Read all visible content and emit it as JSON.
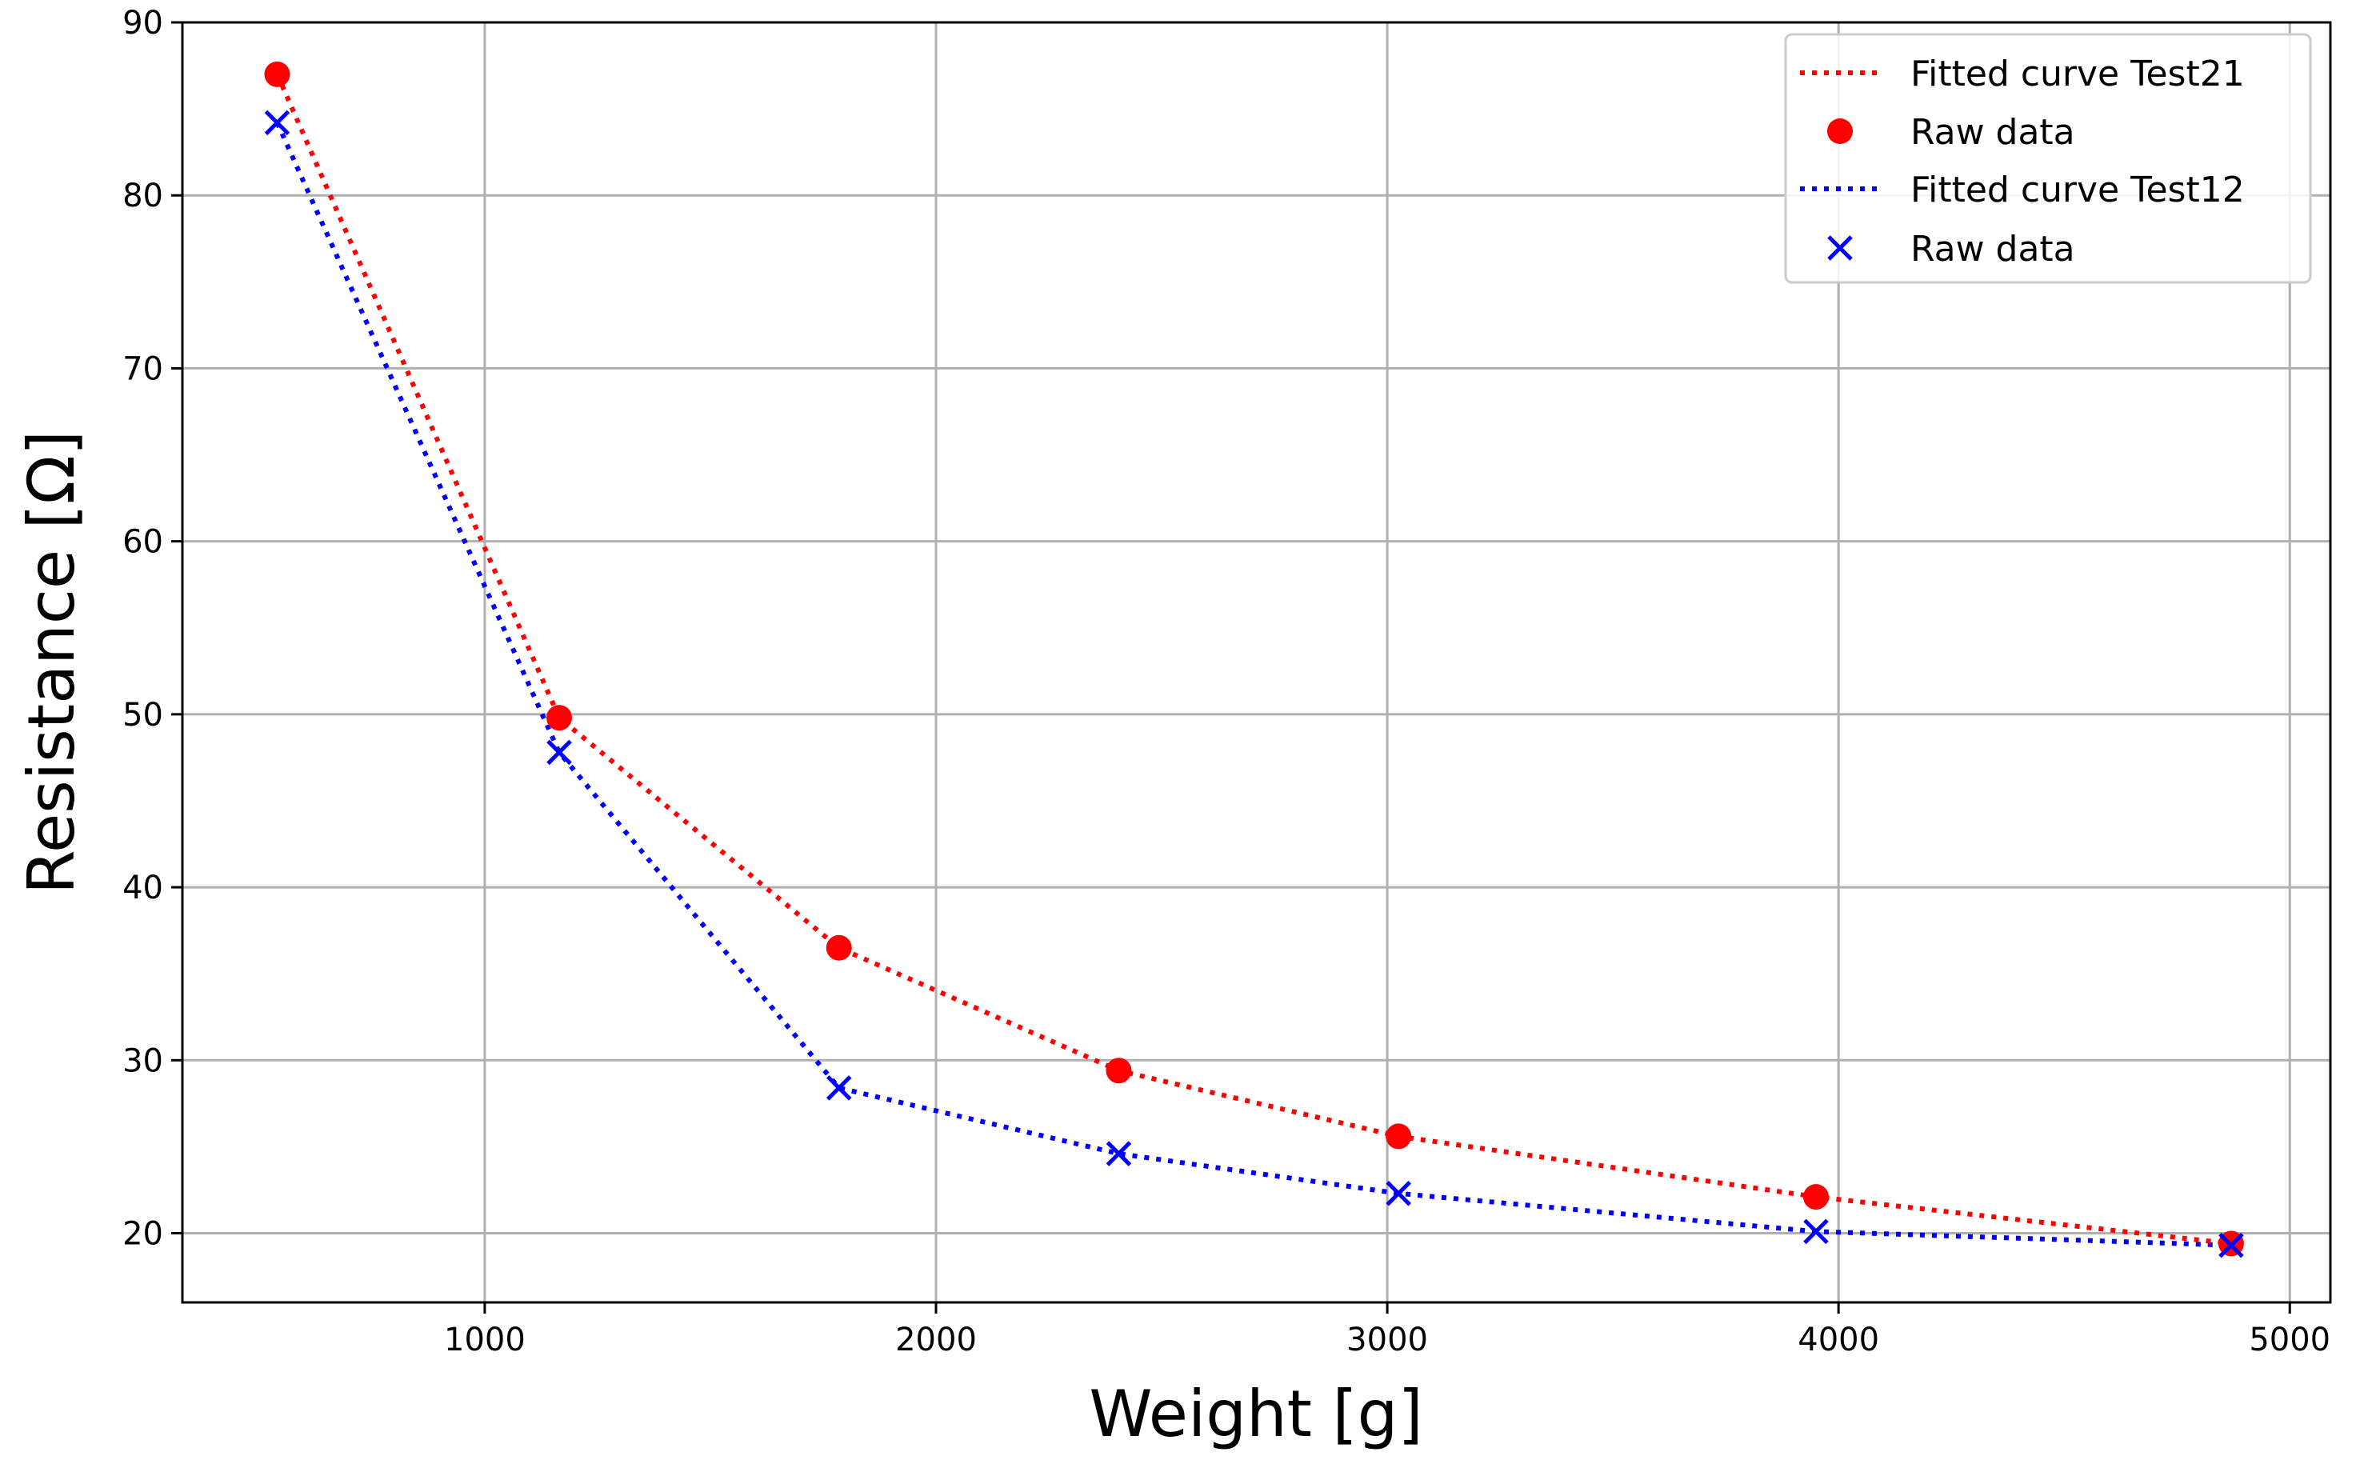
{
  "chart_data": {
    "type": "line",
    "title": "",
    "xlabel": "Weight [g]",
    "ylabel": "Resistance [Ω]",
    "xlim": [
      330,
      5090
    ],
    "ylim": [
      16,
      90
    ],
    "xticks": [
      1000,
      2000,
      3000,
      4000,
      5000
    ],
    "yticks": [
      20,
      30,
      40,
      50,
      60,
      70,
      80,
      90
    ],
    "grid": true,
    "legend_position": "top-right",
    "colors": {
      "test21": "#ff0000",
      "test12": "#0000ff",
      "grid": "#b0b0b0"
    },
    "series": [
      {
        "id": "test21",
        "fit_name": "Fitted  curve Test21",
        "raw_name": "Raw data",
        "marker": "circle",
        "x": [
          540,
          1165,
          1785,
          2405,
          3025,
          3950,
          4870
        ],
        "y": [
          87.0,
          49.8,
          36.5,
          29.4,
          25.6,
          22.1,
          19.4
        ]
      },
      {
        "id": "test12",
        "fit_name": "Fitted  curve Test12",
        "raw_name": "Raw data",
        "marker": "x",
        "x": [
          540,
          1165,
          1785,
          2405,
          3025,
          3950,
          4870
        ],
        "y": [
          84.2,
          47.8,
          28.4,
          24.6,
          22.3,
          20.1,
          19.3
        ]
      }
    ]
  }
}
